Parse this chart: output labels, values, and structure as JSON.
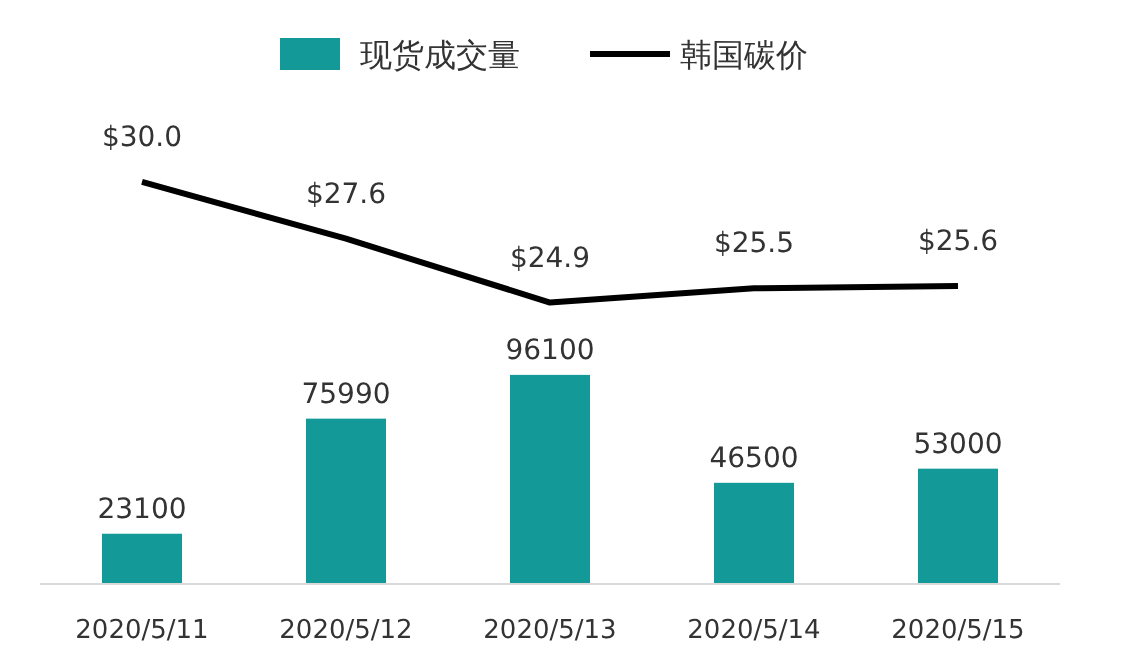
{
  "chart_data": {
    "type": "bar",
    "categories": [
      "2020/5/11",
      "2020/5/12",
      "2020/5/13",
      "2020/5/14",
      "2020/5/15"
    ],
    "legend": "top",
    "tick_labels": "x",
    "ylim": [
      0,
      250000
    ],
    "y2lim": [
      13,
      36
    ],
    "series": [
      {
        "name": "现货成交量",
        "color": "#139a98",
        "values": [
          23100,
          75990,
          96100,
          46500,
          53000
        ],
        "value_labels": [
          "23100",
          "75990",
          "96100",
          "46500",
          "53000"
        ]
      },
      {
        "name": "韩国碳价",
        "type": "line",
        "axis": "y2",
        "color": "#000000",
        "values": [
          30.0,
          27.6,
          24.9,
          25.5,
          25.6
        ],
        "value_labels": [
          "$30.0",
          "$27.6",
          "$24.9",
          "$25.5",
          "$25.6"
        ]
      }
    ]
  }
}
